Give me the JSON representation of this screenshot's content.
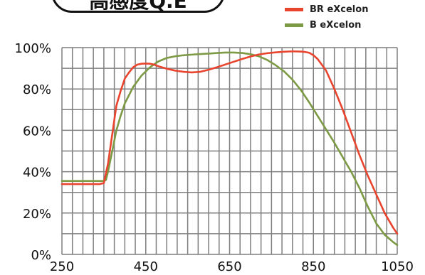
{
  "colors": {
    "background": "#ffffff",
    "grid": "#7f7f7f",
    "axis_text": "#111111"
  },
  "title_pill": {
    "text": "高感度Q.E"
  },
  "legend": [
    {
      "label": "BR eXcelon",
      "color": "#e8442e"
    },
    {
      "label": "B eXcelon",
      "color": "#7d9a45"
    }
  ],
  "chart_data": {
    "type": "line",
    "title": "高感度Q.E",
    "xlabel": "",
    "ylabel": "",
    "xlim": [
      250,
      1050
    ],
    "ylim": [
      0,
      100
    ],
    "x_ticks": [
      250,
      450,
      650,
      850,
      1050
    ],
    "x_tick_labels": [
      "250",
      "450",
      "650",
      "850",
      "1050"
    ],
    "y_ticks": [
      0,
      20,
      40,
      60,
      80,
      100
    ],
    "y_tick_labels": [
      "0%",
      "20%",
      "40%",
      "60%",
      "80%",
      "100%"
    ],
    "grid": true,
    "legend_position": "top-right",
    "series": [
      {
        "name": "BR eXcelon",
        "color": "#e8442e",
        "x": [
          250,
          300,
          340,
          350,
          360,
          370,
          380,
          390,
          400,
          410,
          420,
          430,
          440,
          450,
          460,
          470,
          480,
          500,
          520,
          540,
          560,
          580,
          600,
          620,
          650,
          680,
          700,
          720,
          740,
          760,
          780,
          800,
          820,
          830,
          840,
          850,
          860,
          880,
          900,
          920,
          940,
          960,
          980,
          1000,
          1020,
          1040,
          1050
        ],
        "y": [
          34,
          34,
          34,
          34.5,
          44,
          58,
          72,
          79,
          85,
          88,
          90.5,
          91.8,
          92.2,
          92.3,
          92.2,
          91.8,
          91,
          89.8,
          88.9,
          88.3,
          88,
          88.3,
          89.3,
          90.5,
          92.5,
          94.5,
          95.7,
          96.7,
          97.3,
          97.7,
          98,
          98.2,
          98.1,
          97.9,
          97.5,
          96.3,
          94.5,
          89,
          80,
          70,
          59,
          48,
          38,
          29,
          20,
          13,
          10
        ]
      },
      {
        "name": "B eXcelon",
        "color": "#7d9a45",
        "x": [
          250,
          300,
          340,
          350,
          355,
          360,
          370,
          380,
          390,
          400,
          420,
          440,
          460,
          480,
          500,
          520,
          540,
          560,
          580,
          600,
          620,
          640,
          650,
          660,
          680,
          700,
          720,
          740,
          760,
          780,
          800,
          820,
          840,
          860,
          880,
          900,
          920,
          940,
          960,
          980,
          1000,
          1020,
          1040,
          1050
        ],
        "y": [
          35.5,
          35.5,
          35.5,
          35.5,
          36,
          40,
          50,
          60,
          67,
          73,
          81,
          86.5,
          90.5,
          93.3,
          95,
          95.8,
          96.3,
          96.6,
          96.9,
          97.1,
          97.4,
          97.6,
          97.6,
          97.6,
          97.4,
          96.8,
          95.8,
          94,
          91.5,
          88.5,
          84.5,
          79.5,
          73.5,
          67,
          60.5,
          54,
          47,
          40,
          32,
          23,
          15,
          9.5,
          6,
          4.5
        ]
      }
    ]
  }
}
